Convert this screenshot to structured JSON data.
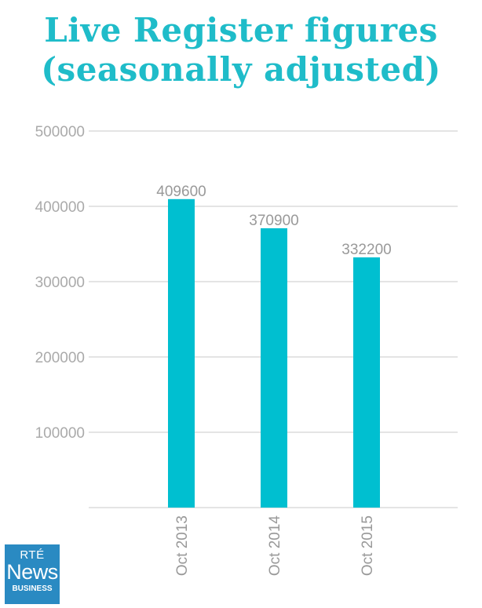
{
  "title_line1": "Live Register figures",
  "title_line2": "(seasonally adjusted)",
  "logo": {
    "line1": "RTÉ",
    "line2": "News",
    "line3": "BUSINESS"
  },
  "colors": {
    "accent": "#1fbcc9",
    "bar": "#00bfd0",
    "grid": "#c8c8c8",
    "logo_bg": "#2a8ac2"
  },
  "chart_data": {
    "type": "bar",
    "title": "Live Register figures (seasonally adjusted)",
    "categories": [
      "Oct 2013",
      "Oct 2014",
      "Oct 2015"
    ],
    "values": [
      409600,
      370900,
      332200
    ],
    "data_labels": [
      "409600",
      "370900",
      "332200"
    ],
    "yticks": [
      100000,
      200000,
      300000,
      400000,
      500000
    ],
    "ytick_labels": [
      "100000",
      "200000",
      "300000",
      "400000",
      "500000"
    ],
    "ylim": [
      0,
      500000
    ],
    "xlabel": "",
    "ylabel": "",
    "grid": true,
    "legend": "none"
  }
}
